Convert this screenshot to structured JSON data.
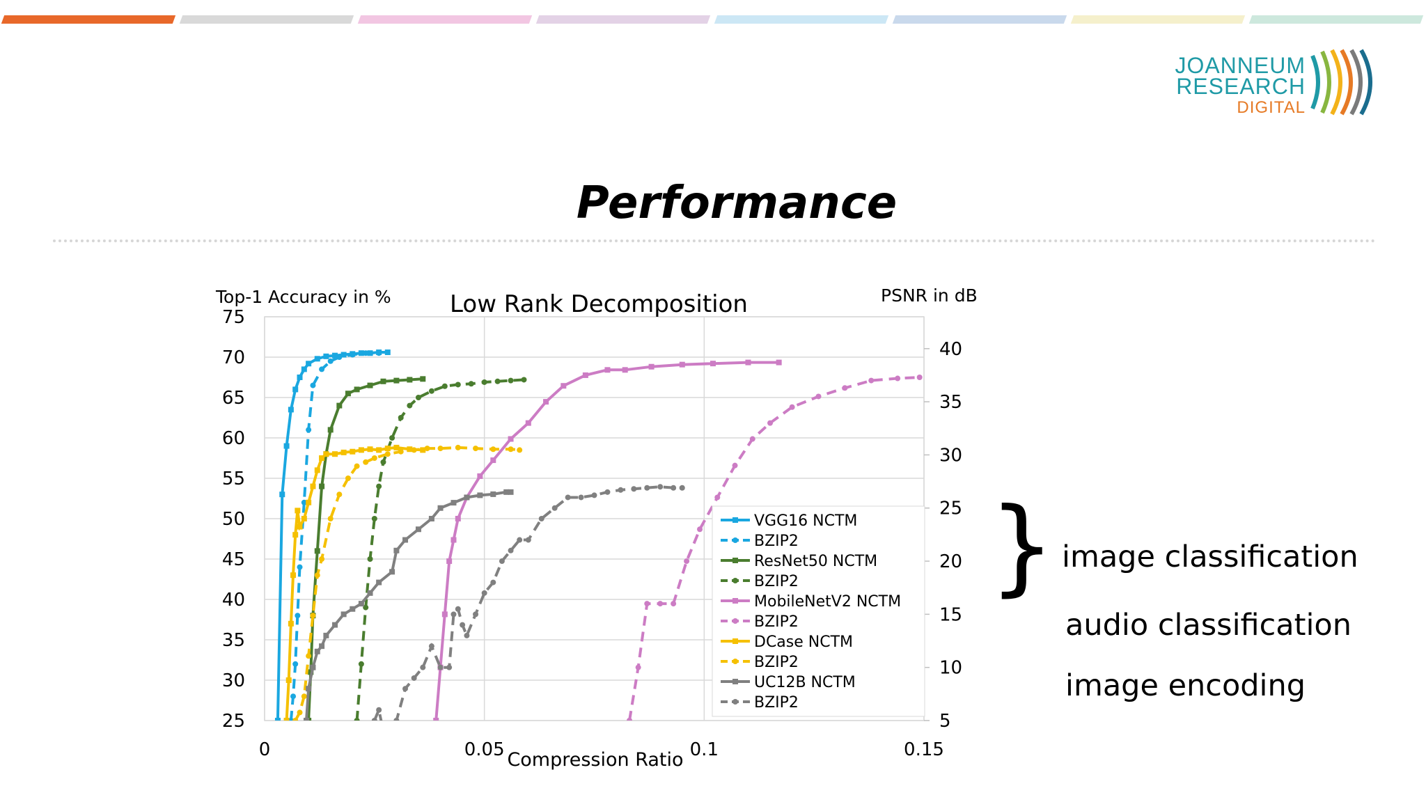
{
  "slide": {
    "title": "Performance",
    "logo": {
      "line1": "JOANNEUM",
      "line2": "RESEARCH",
      "line3": "DIGITAL"
    },
    "top_bar_colors": [
      "#e8682a",
      "#d9d9d9",
      "#f2c6e2",
      "#e3d2e6",
      "#cce7f5",
      "#c9d9ec",
      "#f5f0cc",
      "#cde8dd"
    ],
    "side_labels": [
      "image classification",
      "audio classification",
      "image encoding"
    ]
  },
  "chart_data": {
    "type": "line",
    "title": "Low Rank Decomposition",
    "xlabel": "Compression Ratio",
    "ylabel": "Top-1 Accuracy in %",
    "y2label": "PSNR in dB",
    "xlim": [
      0,
      0.15
    ],
    "ylim": [
      25,
      75
    ],
    "y2lim": [
      5,
      43
    ],
    "xticks": [
      "0",
      "0.05",
      "0.1",
      "0.15"
    ],
    "yticks": [
      "25",
      "30",
      "35",
      "40",
      "45",
      "50",
      "55",
      "60",
      "65",
      "70",
      "75"
    ],
    "y2ticks": [
      "5",
      "10",
      "15",
      "20",
      "25",
      "30",
      "35",
      "40"
    ],
    "grid": true,
    "legend_position": "bottom-right",
    "series": [
      {
        "name": "VGG16 NCTM",
        "color": "#1aa7e0",
        "dash": false,
        "marker": "square",
        "axis": "left",
        "x": [
          0.003,
          0.004,
          0.005,
          0.006,
          0.007,
          0.008,
          0.009,
          0.01,
          0.012,
          0.014,
          0.016,
          0.018,
          0.02,
          0.022,
          0.024,
          0.026,
          0.028
        ],
        "y": [
          25,
          53,
          59,
          63.5,
          66,
          67.5,
          68.5,
          69.2,
          69.8,
          70.1,
          70.2,
          70.3,
          70.4,
          70.5,
          70.5,
          70.6,
          70.6
        ]
      },
      {
        "name": "BZIP2",
        "color": "#1aa7e0",
        "dash": true,
        "marker": "circle",
        "axis": "left",
        "x": [
          0.006,
          0.0065,
          0.007,
          0.0075,
          0.008,
          0.009,
          0.01,
          0.011,
          0.013,
          0.015,
          0.017,
          0.02,
          0.023,
          0.026
        ],
        "y": [
          25,
          28,
          32,
          38,
          44,
          52,
          61,
          66.5,
          68.5,
          69.5,
          70,
          70.3,
          70.5,
          70.5
        ]
      },
      {
        "name": "ResNet50 NCTM",
        "color": "#4a7d2f",
        "dash": false,
        "marker": "square",
        "axis": "left",
        "x": [
          0.01,
          0.0105,
          0.011,
          0.012,
          0.013,
          0.014,
          0.015,
          0.017,
          0.019,
          0.021,
          0.024,
          0.027,
          0.03,
          0.033,
          0.036
        ],
        "y": [
          25,
          31,
          38,
          46,
          54,
          58,
          61,
          64,
          65.5,
          66,
          66.5,
          67,
          67.1,
          67.2,
          67.3
        ]
      },
      {
        "name": "BZIP2",
        "color": "#4a7d2f",
        "dash": true,
        "marker": "circle",
        "axis": "left",
        "x": [
          0.021,
          0.022,
          0.023,
          0.024,
          0.025,
          0.026,
          0.027,
          0.029,
          0.031,
          0.033,
          0.035,
          0.038,
          0.041,
          0.044,
          0.047,
          0.05,
          0.053,
          0.056,
          0.059
        ],
        "y": [
          25,
          32,
          39,
          45,
          50,
          54,
          57,
          60,
          62.5,
          64,
          65,
          65.8,
          66.4,
          66.6,
          66.7,
          66.9,
          67,
          67.1,
          67.2
        ]
      },
      {
        "name": "MobileNetV2 NCTM",
        "color": "#cc7cc4",
        "dash": false,
        "marker": "square",
        "axis": "right",
        "x": [
          0.039,
          0.04,
          0.041,
          0.042,
          0.043,
          0.044,
          0.046,
          0.049,
          0.052,
          0.056,
          0.06,
          0.064,
          0.068,
          0.073,
          0.078,
          0.082,
          0.088,
          0.095,
          0.102,
          0.11,
          0.117
        ],
        "y": [
          5,
          10,
          15,
          20,
          22,
          24,
          26,
          28,
          29.5,
          31.5,
          33,
          35,
          36.5,
          37.5,
          38,
          38,
          38.3,
          38.5,
          38.6,
          38.7,
          38.7
        ]
      },
      {
        "name": "BZIP2",
        "color": "#cc7cc4",
        "dash": true,
        "marker": "circle",
        "axis": "right",
        "x": [
          0.083,
          0.085,
          0.087,
          0.09,
          0.093,
          0.096,
          0.099,
          0.103,
          0.107,
          0.111,
          0.115,
          0.12,
          0.126,
          0.132,
          0.138,
          0.144,
          0.149
        ],
        "y": [
          5,
          10,
          16,
          16,
          16,
          20,
          23,
          26,
          29,
          31.5,
          33,
          34.5,
          35.5,
          36.3,
          37,
          37.2,
          37.3
        ]
      },
      {
        "name": "DCase NCTM",
        "color": "#f5c000",
        "dash": false,
        "marker": "square",
        "axis": "left",
        "x": [
          0.005,
          0.0055,
          0.006,
          0.0065,
          0.007,
          0.0075,
          0.008,
          0.009,
          0.01,
          0.011,
          0.012,
          0.013,
          0.014,
          0.016,
          0.018,
          0.02,
          0.022,
          0.024,
          0.026,
          0.028,
          0.03,
          0.033,
          0.036
        ],
        "y": [
          25,
          30,
          37,
          43,
          48,
          51,
          49,
          50,
          52,
          54,
          56,
          57.5,
          58,
          58,
          58.2,
          58.3,
          58.5,
          58.6,
          58.5,
          58.7,
          58.8,
          58.6,
          58.5
        ]
      },
      {
        "name": "BZIP2",
        "color": "#f5c000",
        "dash": true,
        "marker": "circle",
        "axis": "left",
        "x": [
          0.007,
          0.008,
          0.009,
          0.01,
          0.011,
          0.012,
          0.013,
          0.015,
          0.017,
          0.019,
          0.021,
          0.023,
          0.025,
          0.028,
          0.031,
          0.034,
          0.037,
          0.04,
          0.044,
          0.048,
          0.052,
          0.056,
          0.058
        ],
        "y": [
          25,
          26,
          28,
          33,
          38,
          43,
          45,
          50,
          53,
          55,
          56.5,
          57,
          57.5,
          58,
          58.3,
          58.5,
          58.7,
          58.7,
          58.8,
          58.7,
          58.6,
          58.6,
          58.5
        ]
      },
      {
        "name": "UC12B NCTM",
        "color": "#808080",
        "dash": false,
        "marker": "square",
        "axis": "right",
        "x": [
          0.0095,
          0.01,
          0.011,
          0.012,
          0.013,
          0.014,
          0.016,
          0.018,
          0.02,
          0.022,
          0.024,
          0.026,
          0.029,
          0.03,
          0.032,
          0.035,
          0.038,
          0.04,
          0.043,
          0.046,
          0.049,
          0.052,
          0.055,
          0.056
        ],
        "y": [
          5,
          8,
          10,
          11.5,
          12,
          13,
          14,
          15,
          15.5,
          16,
          17,
          18,
          19,
          21,
          22,
          23,
          24,
          25,
          25.5,
          26,
          26.2,
          26.3,
          26.5,
          26.5
        ]
      },
      {
        "name": "BZIP2",
        "color": "#808080",
        "dash": true,
        "marker": "circle",
        "axis": "right",
        "x": [
          0.025,
          0.026,
          0.027,
          0.03,
          0.032,
          0.034,
          0.036,
          0.038,
          0.04,
          0.042,
          0.043,
          0.044,
          0.045,
          0.046,
          0.048,
          0.05,
          0.052,
          0.054,
          0.056,
          0.058,
          0.06,
          0.063,
          0.066,
          0.069,
          0.072,
          0.075,
          0.078,
          0.081,
          0.084,
          0.087,
          0.09,
          0.093,
          0.095
        ],
        "y": [
          5,
          6,
          4,
          5,
          8,
          9,
          10,
          12,
          10,
          10,
          15,
          15.5,
          14,
          13,
          15,
          17,
          18,
          20,
          21,
          22,
          22,
          24,
          25,
          26,
          26,
          26.2,
          26.5,
          26.7,
          26.8,
          26.9,
          27,
          26.9,
          26.9
        ]
      }
    ]
  }
}
